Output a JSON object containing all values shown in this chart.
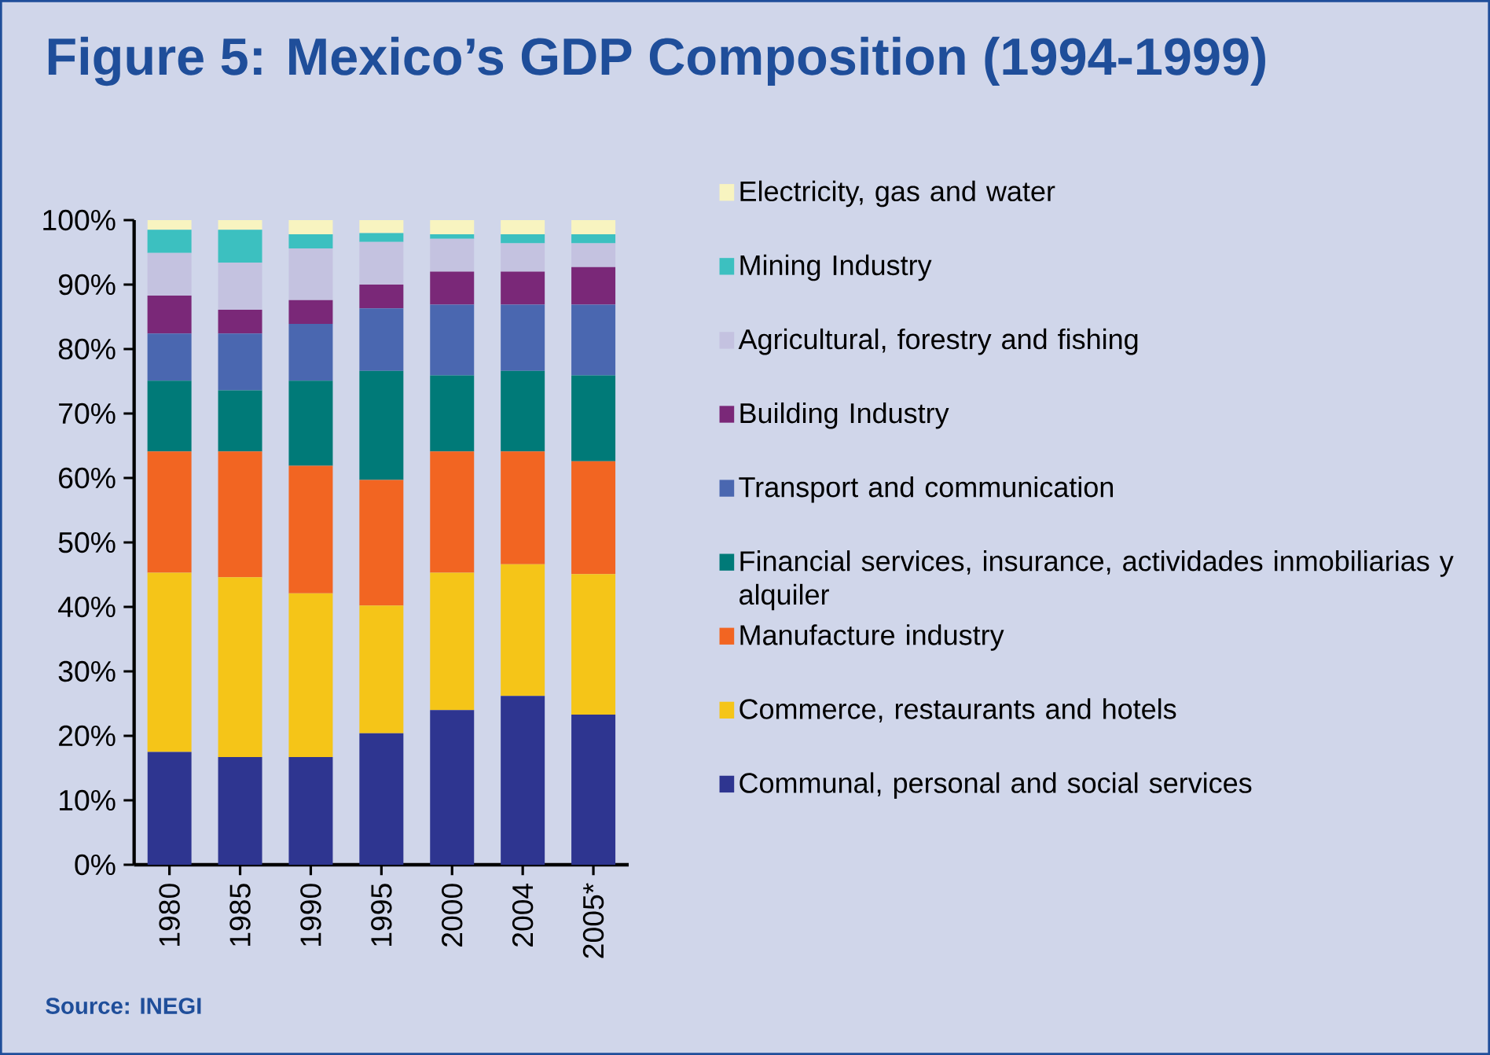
{
  "chart_data": {
    "type": "bar",
    "stacked": true,
    "title": "Figure 5: Mexico’s GDP Composition (1994-1999)",
    "annotations": [
      "Source: INEGI"
    ],
    "categories": [
      "1980",
      "1985",
      "1990",
      "1995",
      "2000",
      "2004",
      "2005*"
    ],
    "series": [
      {
        "name": "Communal, personal and social services",
        "color": "#2e3590",
        "values": [
          17.5,
          16.7,
          16.7,
          20.4,
          24.0,
          26.2,
          23.3
        ]
      },
      {
        "name": "Commerce, restaurants and hotels",
        "color": "#f5c518",
        "values": [
          27.8,
          27.9,
          25.4,
          19.8,
          21.3,
          20.4,
          21.8
        ]
      },
      {
        "name": "Manufacture industry",
        "color": "#f26522",
        "values": [
          18.8,
          19.5,
          19.8,
          19.5,
          18.8,
          17.5,
          17.5
        ]
      },
      {
        "name": "Financial services, insurance, actividades inmobiliarias y alquiler",
        "color": "#007a78",
        "values": [
          11.0,
          9.5,
          13.2,
          16.9,
          11.8,
          12.5,
          13.3
        ]
      },
      {
        "name": "Transport and communication",
        "color": "#4a67b0",
        "values": [
          7.3,
          8.8,
          8.8,
          9.7,
          11.0,
          10.3,
          11.0
        ]
      },
      {
        "name": "Building Industry",
        "color": "#7a2878",
        "values": [
          5.9,
          3.7,
          3.7,
          3.7,
          5.1,
          5.1,
          5.8
        ]
      },
      {
        "name": "Agricultural, forestry and fishing",
        "color": "#c4c2e0",
        "values": [
          6.6,
          7.3,
          8.0,
          6.6,
          5.1,
          4.4,
          3.7
        ]
      },
      {
        "name": "Mining Industry",
        "color": "#3cc0c0",
        "values": [
          3.6,
          5.1,
          2.2,
          1.4,
          0.7,
          1.4,
          1.4
        ]
      },
      {
        "name": "Electricity, gas and water",
        "color": "#f8f4c0",
        "values": [
          1.5,
          1.5,
          2.2,
          2.2,
          2.2,
          2.2,
          2.2
        ]
      }
    ],
    "ylim": [
      0,
      100
    ],
    "yticks": [
      {
        "value": 0,
        "label": "0%"
      },
      {
        "value": 10,
        "label": "10%"
      },
      {
        "value": 20,
        "label": "20%"
      },
      {
        "value": 30,
        "label": "30%"
      },
      {
        "value": 40,
        "label": "40%"
      },
      {
        "value": 50,
        "label": "50%"
      },
      {
        "value": 60,
        "label": "60%"
      },
      {
        "value": 70,
        "label": "70%"
      },
      {
        "value": 80,
        "label": "80%"
      },
      {
        "value": 90,
        "label": "90%"
      },
      {
        "value": 100,
        "label": "100%"
      }
    ],
    "legend": "right"
  }
}
